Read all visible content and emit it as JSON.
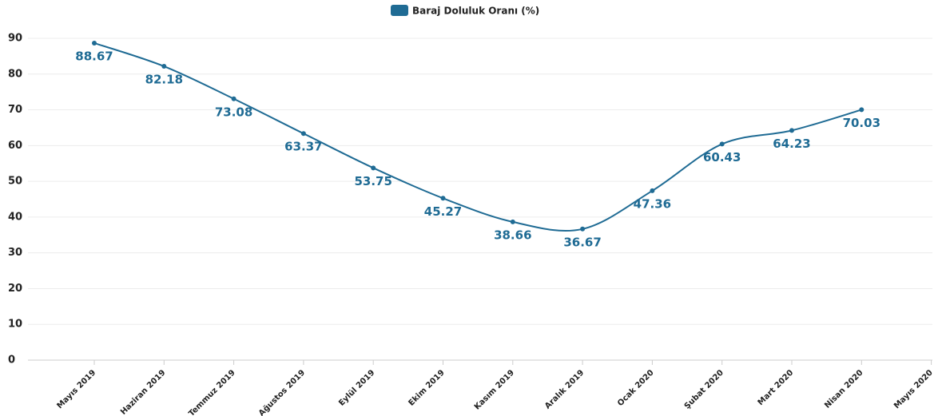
{
  "chart_data": {
    "type": "line",
    "categories": [
      "Mayıs 2019",
      "Haziran 2019",
      "Temmuz 2019",
      "Ağustos 2019",
      "Eylül 2019",
      "Ekim 2019",
      "Kasım 2019",
      "Aralık 2019",
      "Ocak 2020",
      "Şubat 2020",
      "Mart 2020",
      "Nisan 2020",
      "Mayıs 2020"
    ],
    "series": [
      {
        "name": "Baraj Doluluk Oranı (%)",
        "color": "#1f6b94",
        "values": [
          88.67,
          82.18,
          73.08,
          63.37,
          53.75,
          45.27,
          38.66,
          36.67,
          47.36,
          60.43,
          64.23,
          70.03,
          null
        ]
      }
    ],
    "ylim": [
      0,
      90
    ],
    "yticks": [
      0,
      10,
      20,
      30,
      40,
      50,
      60,
      70,
      80,
      90
    ],
    "grid": true,
    "legend": "top"
  }
}
